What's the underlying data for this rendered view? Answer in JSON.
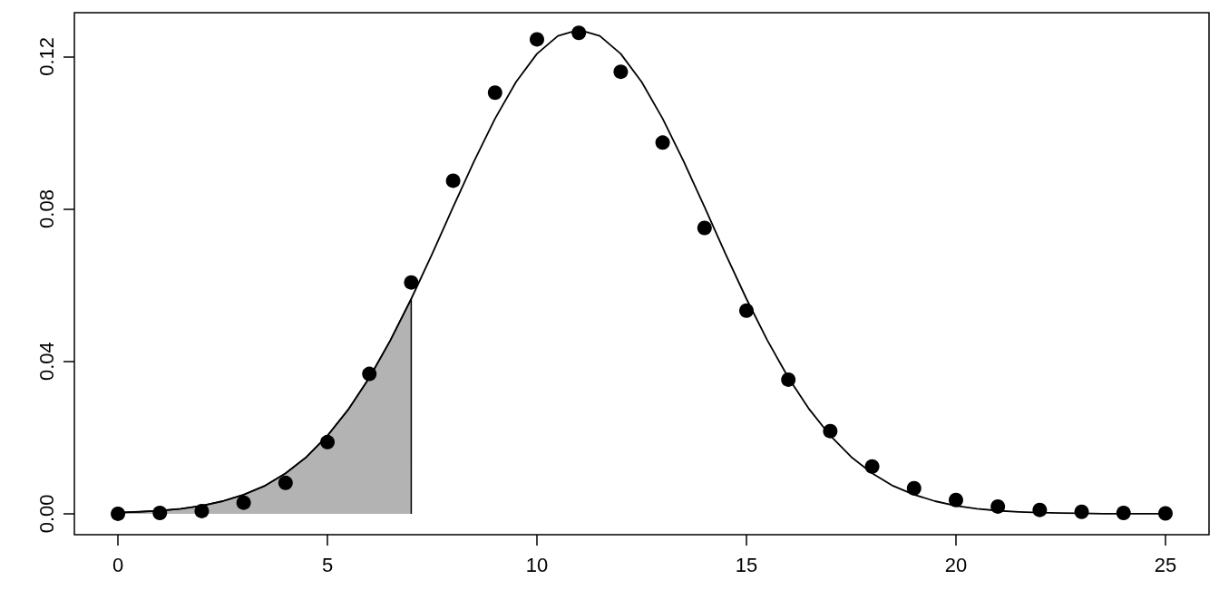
{
  "chart_data": {
    "type": "scatter",
    "xlim": [
      -1.04,
      26.04
    ],
    "xticks": [
      0,
      5,
      10,
      15,
      20,
      25
    ],
    "ylim": [
      -0.0055,
      0.1315
    ],
    "yticks": [
      {
        "value": 0,
        "label": "0.00"
      },
      {
        "value": 0.04,
        "label": "0.04"
      },
      {
        "value": 0.08,
        "label": "0.08"
      },
      {
        "value": 0.12,
        "label": "0.12"
      }
    ],
    "grid": false,
    "series": [
      {
        "type": "area",
        "color": "#b3b3b3",
        "x": [
          0,
          0,
          0.5,
          1,
          1.5,
          2,
          2.5,
          3,
          3.5,
          4,
          4.5,
          5,
          5.5,
          6,
          6.5,
          7,
          7
        ],
        "values": [
          0,
          0.0003,
          0.0005,
          0.0008,
          0.0013,
          0.0021,
          0.0033,
          0.005,
          0.0073,
          0.0106,
          0.0149,
          0.0205,
          0.0274,
          0.0357,
          0.0455,
          0.0564,
          0
        ]
      },
      {
        "type": "line",
        "color": "#000000",
        "line_style": "solid",
        "x": [
          0,
          0.5,
          1,
          1.5,
          2,
          2.5,
          3,
          3.5,
          4,
          4.5,
          5,
          5.5,
          6,
          6.5,
          7,
          7.5,
          8,
          8.5,
          9,
          9.5,
          10,
          10.5,
          11,
          11.5,
          12,
          12.5,
          13,
          13.5,
          14,
          14.5,
          15,
          15.5,
          16,
          16.5,
          17,
          17.5,
          18,
          18.5,
          19,
          19.5,
          20,
          20.5,
          21,
          21.5,
          22,
          22.5,
          23,
          23.5,
          24,
          24.5,
          25
        ],
        "values": [
          0.0003,
          0.0005,
          0.0008,
          0.0013,
          0.0021,
          0.0033,
          0.005,
          0.0073,
          0.0106,
          0.0149,
          0.0205,
          0.0274,
          0.0357,
          0.0455,
          0.0564,
          0.0682,
          0.0805,
          0.0925,
          0.1037,
          0.1133,
          0.1207,
          0.1254,
          0.127,
          0.1254,
          0.1207,
          0.1133,
          0.1037,
          0.0925,
          0.0805,
          0.0682,
          0.0564,
          0.0455,
          0.0357,
          0.0274,
          0.0205,
          0.0149,
          0.0106,
          0.0073,
          0.005,
          0.0033,
          0.0021,
          0.0013,
          0.0008,
          0.0005,
          0.0003,
          0.0002,
          0.0001,
          0,
          0,
          0,
          0
        ]
      },
      {
        "color": "#000000",
        "marker": "circle",
        "x": [
          0,
          1,
          2,
          3,
          4,
          5,
          6,
          7,
          8,
          9,
          10,
          11,
          12,
          13,
          14,
          15,
          16,
          17,
          18,
          19,
          20,
          21,
          22,
          23,
          24,
          25
        ],
        "values": [
          0,
          0.0002,
          0.0007,
          0.0029,
          0.0081,
          0.0188,
          0.0367,
          0.0607,
          0.0874,
          0.1105,
          0.1245,
          0.1262,
          0.116,
          0.0974,
          0.075,
          0.0533,
          0.0352,
          0.0217,
          0.0124,
          0.0067,
          0.0036,
          0.0019,
          0.001,
          0.0005,
          0.0002,
          0.0001
        ]
      }
    ]
  }
}
